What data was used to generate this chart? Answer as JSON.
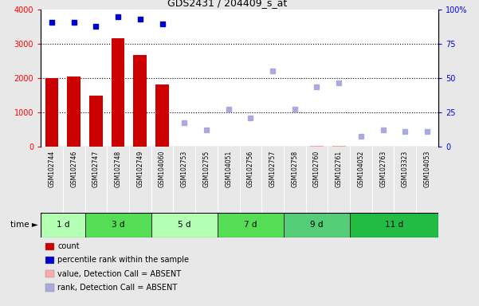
{
  "title": "GDS2431 / 204409_s_at",
  "samples": [
    "GSM102744",
    "GSM102746",
    "GSM102747",
    "GSM102748",
    "GSM102749",
    "GSM104060",
    "GSM102753",
    "GSM102755",
    "GSM104051",
    "GSM102756",
    "GSM102757",
    "GSM102758",
    "GSM102760",
    "GSM102761",
    "GSM104052",
    "GSM102763",
    "GSM103323",
    "GSM104053"
  ],
  "time_groups": [
    {
      "label": "1 d",
      "start": 0,
      "end": 1
    },
    {
      "label": "3 d",
      "start": 2,
      "end": 4
    },
    {
      "label": "5 d",
      "start": 5,
      "end": 7
    },
    {
      "label": "7 d",
      "start": 8,
      "end": 10
    },
    {
      "label": "9 d",
      "start": 11,
      "end": 13
    },
    {
      "label": "11 d",
      "start": 14,
      "end": 17
    }
  ],
  "group_colors": [
    "#b3ffb3",
    "#55dd55",
    "#b3ffb3",
    "#55dd55",
    "#55cc77",
    "#22bb44"
  ],
  "bar_values": [
    2000,
    2050,
    1480,
    3150,
    2680,
    1820,
    0,
    0,
    0,
    0,
    0,
    0,
    25,
    40,
    0,
    0,
    0,
    0
  ],
  "bar_color_present": "#cc0000",
  "bar_color_absent": "#ffaaaa",
  "blue_square_present": [
    3620,
    3620,
    3500,
    3780,
    3700,
    3570,
    null,
    null,
    null,
    null,
    null,
    null,
    null,
    null,
    null,
    null,
    null,
    null
  ],
  "blue_square_absent": [
    null,
    null,
    null,
    null,
    null,
    null,
    700,
    500,
    1100,
    850,
    2200,
    1100,
    1750,
    1850,
    300,
    500,
    450,
    450
  ],
  "blue_sq_color": "#0000cc",
  "blue_sq_absent_color": "#aaaadd",
  "ylim_left": [
    0,
    4000
  ],
  "ylim_right": [
    0,
    100
  ],
  "yticks_left": [
    0,
    1000,
    2000,
    3000,
    4000
  ],
  "yticks_right": [
    0,
    25,
    50,
    75,
    100
  ],
  "ytick_right_labels": [
    "0",
    "25",
    "50",
    "75",
    "100%"
  ],
  "plot_bg": "#ffffff",
  "fig_bg": "#e8e8e8",
  "label_area_bg": "#d0d0d0",
  "legend_items": [
    {
      "label": "count",
      "color": "#cc0000"
    },
    {
      "label": "percentile rank within the sample",
      "color": "#0000cc"
    },
    {
      "label": "value, Detection Call = ABSENT",
      "color": "#ffaaaa"
    },
    {
      "label": "rank, Detection Call = ABSENT",
      "color": "#aaaadd"
    }
  ]
}
